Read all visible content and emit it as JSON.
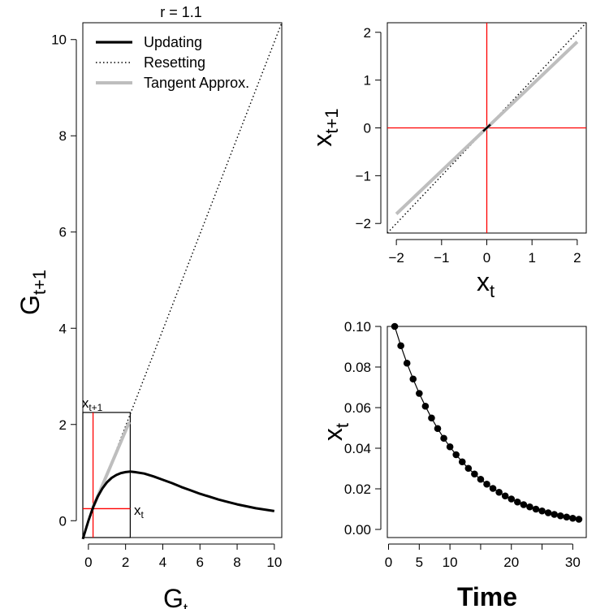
{
  "chart_data": [
    {
      "type": "line",
      "title": "r = 1.1",
      "xlabel": "G",
      "xlabel_sub": "t",
      "ylabel": "G",
      "ylabel_sub": "t+1",
      "xlim": [
        -0.3,
        10.4
      ],
      "ylim": [
        -0.35,
        10.35
      ],
      "x_ticks": [
        0,
        2,
        4,
        6,
        8,
        10
      ],
      "y_ticks": [
        0,
        2,
        4,
        6,
        8,
        10
      ],
      "legend_position": "top-left",
      "series": [
        {
          "name": "Updating",
          "style": "solid-black-thick",
          "x": [
            -0.3,
            0,
            0.25,
            0.5,
            0.75,
            1.0,
            1.25,
            1.5,
            1.75,
            2.0,
            2.25,
            2.5,
            3.0,
            3.5,
            4.0,
            4.5,
            5.0,
            5.5,
            6.0,
            6.5,
            7.0,
            7.5,
            8.0,
            8.5,
            9.0,
            9.5,
            10.0
          ],
          "y": [
            -0.38,
            0,
            0.28,
            0.5,
            0.67,
            0.8,
            0.89,
            0.95,
            0.99,
            1.01,
            1.02,
            1.01,
            0.98,
            0.92,
            0.85,
            0.78,
            0.7,
            0.63,
            0.56,
            0.5,
            0.44,
            0.39,
            0.34,
            0.3,
            0.26,
            0.23,
            0.2
          ]
        },
        {
          "name": "Resetting",
          "style": "dotted-black",
          "x": [
            -0.3,
            10.4
          ],
          "y": [
            -0.33,
            10.35
          ]
        },
        {
          "name": "Tangent Approx.",
          "style": "solid-gray-thick",
          "x": [
            0.25,
            2.2
          ],
          "y": [
            0.28,
            2.05
          ]
        }
      ],
      "inset_box": {
        "x": [
          -0.3,
          2.25
        ],
        "y": [
          -0.35,
          2.25
        ]
      },
      "reference_lines": {
        "vline_x": 0.25,
        "hline_y": 0.25
      },
      "annotations": [
        {
          "text": "x",
          "sub": "t+1",
          "x": -0.35,
          "y": 2.35
        },
        {
          "text": "x",
          "sub": "t",
          "x": 2.45,
          "y": 0.12
        }
      ]
    },
    {
      "type": "line",
      "xlabel": "x",
      "xlabel_sub": "t",
      "ylabel": "x",
      "ylabel_sub": "t+1",
      "xlim": [
        -2.2,
        2.2
      ],
      "ylim": [
        -2.2,
        2.2
      ],
      "x_ticks": [
        -2,
        -1,
        0,
        1,
        2
      ],
      "x_tick_labels": [
        "−2",
        "−1",
        "0",
        "1",
        "2"
      ],
      "y_ticks": [
        -2,
        -1,
        0,
        1,
        2
      ],
      "y_tick_labels": [
        "−2",
        "−1",
        "0",
        "1",
        "2"
      ],
      "series": [
        {
          "style": "dotted-black",
          "x": [
            -2.2,
            2.2
          ],
          "y": [
            -2.2,
            2.2
          ]
        },
        {
          "style": "solid-gray-thick",
          "x": [
            -2.0,
            2.0
          ],
          "y": [
            -1.8,
            1.8
          ]
        },
        {
          "style": "solid-black",
          "x": [
            -0.08,
            0.08
          ],
          "y": [
            -0.07,
            0.07
          ]
        }
      ],
      "reference_lines": {
        "vline_x": 0,
        "hline_y": 0,
        "color": "#ff0000"
      }
    },
    {
      "type": "scatter",
      "xlabel": "Time",
      "ylabel": "x",
      "ylabel_sub": "t",
      "xlim": [
        -0.2,
        32.2
      ],
      "ylim": [
        -0.004,
        0.1
      ],
      "x_ticks": [
        0,
        5,
        10,
        15,
        20,
        25,
        30
      ],
      "x_tick_labels": [
        "0",
        "5",
        "10",
        "",
        "20",
        "",
        "30"
      ],
      "y_ticks": [
        0.0,
        0.02,
        0.04,
        0.06,
        0.08,
        0.1
      ],
      "y_tick_labels": [
        "0.00",
        "0.02",
        "0.04",
        "0.06",
        "0.08",
        "0.10"
      ],
      "series": [
        {
          "style": "line-with-points",
          "x": [
            1,
            2,
            3,
            4,
            5,
            6,
            7,
            8,
            9,
            10,
            11,
            12,
            13,
            14,
            15,
            16,
            17,
            18,
            19,
            20,
            21,
            22,
            23,
            24,
            25,
            26,
            27,
            28,
            29,
            30,
            31
          ],
          "y": [
            0.1,
            0.0905,
            0.0819,
            0.0741,
            0.067,
            0.0607,
            0.0549,
            0.0497,
            0.0449,
            0.0407,
            0.0368,
            0.0333,
            0.0301,
            0.0273,
            0.0247,
            0.0223,
            0.0202,
            0.0183,
            0.0165,
            0.015,
            0.0135,
            0.0122,
            0.0111,
            0.01,
            0.0091,
            0.0082,
            0.0074,
            0.0067,
            0.0061,
            0.0055,
            0.005
          ]
        }
      ]
    }
  ],
  "colors": {
    "red": "#ff0000",
    "gray": "#bebebe",
    "black": "#000000"
  }
}
